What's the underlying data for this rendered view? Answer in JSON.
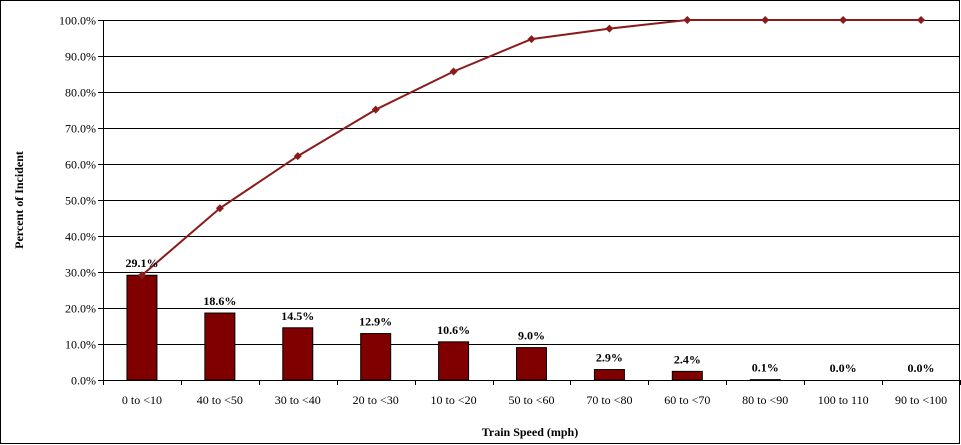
{
  "chart_data": {
    "type": "bar",
    "categories": [
      "0 to <10",
      "40 to <50",
      "30 to <40",
      "20 to <30",
      "10 to <20",
      "50 to <60",
      "70 to <80",
      "60 to <70",
      "80 to <90",
      "100 to 110",
      "90 to <100"
    ],
    "series": [
      {
        "type": "bar",
        "values": [
          29.1,
          18.6,
          14.5,
          12.9,
          10.6,
          9.0,
          2.9,
          2.4,
          0.1,
          0.0,
          0.0
        ],
        "labels": [
          "29.1%",
          "18.6%",
          "14.5%",
          "12.9%",
          "10.6%",
          "9.0%",
          "2.9%",
          "2.4%",
          "0.1%",
          "0.0%",
          "0.0%"
        ],
        "color": "#800000"
      },
      {
        "type": "line",
        "values": [
          29.1,
          47.7,
          62.2,
          75.1,
          85.7,
          94.7,
          97.6,
          100.0,
          100.0,
          100.0,
          100.0
        ],
        "color": "#8B1A1A"
      }
    ],
    "xlabel": "Train Speed (mph)",
    "ylabel": "Percent of Incident",
    "ylim": [
      0,
      100
    ],
    "yticks": [
      "0.0%",
      "10.0%",
      "20.0%",
      "30.0%",
      "40.0%",
      "50.0%",
      "60.0%",
      "70.0%",
      "80.0%",
      "90.0%",
      "100.0%"
    ],
    "grid": true,
    "legend": "none"
  }
}
